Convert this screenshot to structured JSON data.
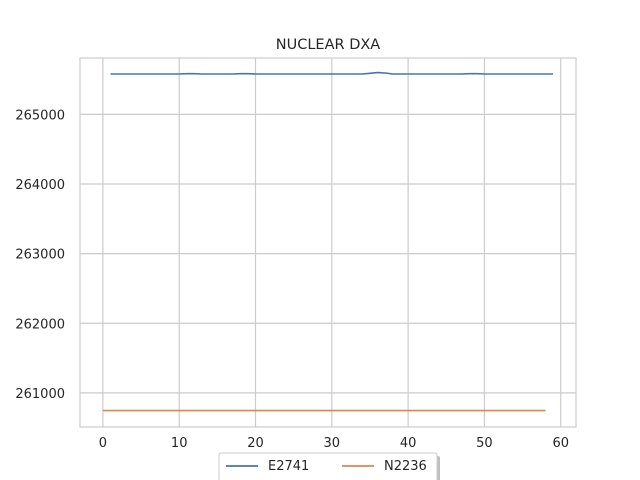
{
  "chart_data": {
    "type": "line",
    "title": "NUCLEAR DXA",
    "xlabel": "",
    "ylabel": "",
    "xlim": [
      -3,
      62
    ],
    "ylim": [
      260510,
      265810
    ],
    "xticks": [
      0,
      10,
      20,
      30,
      40,
      50,
      60
    ],
    "yticks": [
      261000,
      262000,
      263000,
      264000,
      265000
    ],
    "grid": true,
    "legend_position": "bottom-center",
    "series": [
      {
        "name": "E2741",
        "color": "#4c72b0",
        "x": [
          1,
          2,
          3,
          4,
          5,
          6,
          7,
          8,
          9,
          10,
          11,
          12,
          13,
          14,
          15,
          16,
          17,
          18,
          19,
          20,
          21,
          22,
          23,
          24,
          25,
          26,
          27,
          28,
          29,
          30,
          31,
          32,
          33,
          34,
          35,
          36,
          37,
          38,
          39,
          40,
          41,
          42,
          43,
          44,
          45,
          46,
          47,
          48,
          49,
          50,
          51,
          52,
          53,
          54,
          55,
          56,
          57,
          58,
          59
        ],
        "y": [
          265580,
          265580,
          265580,
          265580,
          265580,
          265580,
          265580,
          265580,
          265580,
          265580,
          265585,
          265585,
          265580,
          265580,
          265580,
          265580,
          265580,
          265585,
          265585,
          265580,
          265580,
          265580,
          265580,
          265580,
          265580,
          265580,
          265580,
          265580,
          265580,
          265580,
          265580,
          265580,
          265580,
          265580,
          265590,
          265600,
          265595,
          265580,
          265580,
          265580,
          265580,
          265580,
          265580,
          265580,
          265580,
          265580,
          265580,
          265585,
          265585,
          265580,
          265580,
          265580,
          265580,
          265580,
          265580,
          265580,
          265580,
          265580,
          265580
        ]
      },
      {
        "name": "N2236",
        "color": "#dd8452",
        "x": [
          0,
          1,
          2,
          3,
          4,
          5,
          6,
          7,
          8,
          9,
          10,
          11,
          12,
          13,
          14,
          15,
          16,
          17,
          18,
          19,
          20,
          21,
          22,
          23,
          24,
          25,
          26,
          27,
          28,
          29,
          30,
          31,
          32,
          33,
          34,
          35,
          36,
          37,
          38,
          39,
          40,
          41,
          42,
          43,
          44,
          45,
          46,
          47,
          48,
          49,
          50,
          51,
          52,
          53,
          54,
          55,
          56,
          57,
          58
        ],
        "y": [
          260745,
          260745,
          260745,
          260745,
          260745,
          260745,
          260745,
          260745,
          260745,
          260745,
          260745,
          260745,
          260745,
          260745,
          260745,
          260745,
          260745,
          260745,
          260745,
          260745,
          260745,
          260745,
          260745,
          260745,
          260745,
          260745,
          260745,
          260745,
          260745,
          260745,
          260745,
          260745,
          260745,
          260745,
          260745,
          260745,
          260745,
          260745,
          260745,
          260745,
          260745,
          260745,
          260745,
          260745,
          260745,
          260745,
          260745,
          260745,
          260745,
          260745,
          260745,
          260745,
          260745,
          260745,
          260745,
          260745,
          260745,
          260745,
          260745
        ]
      }
    ]
  }
}
